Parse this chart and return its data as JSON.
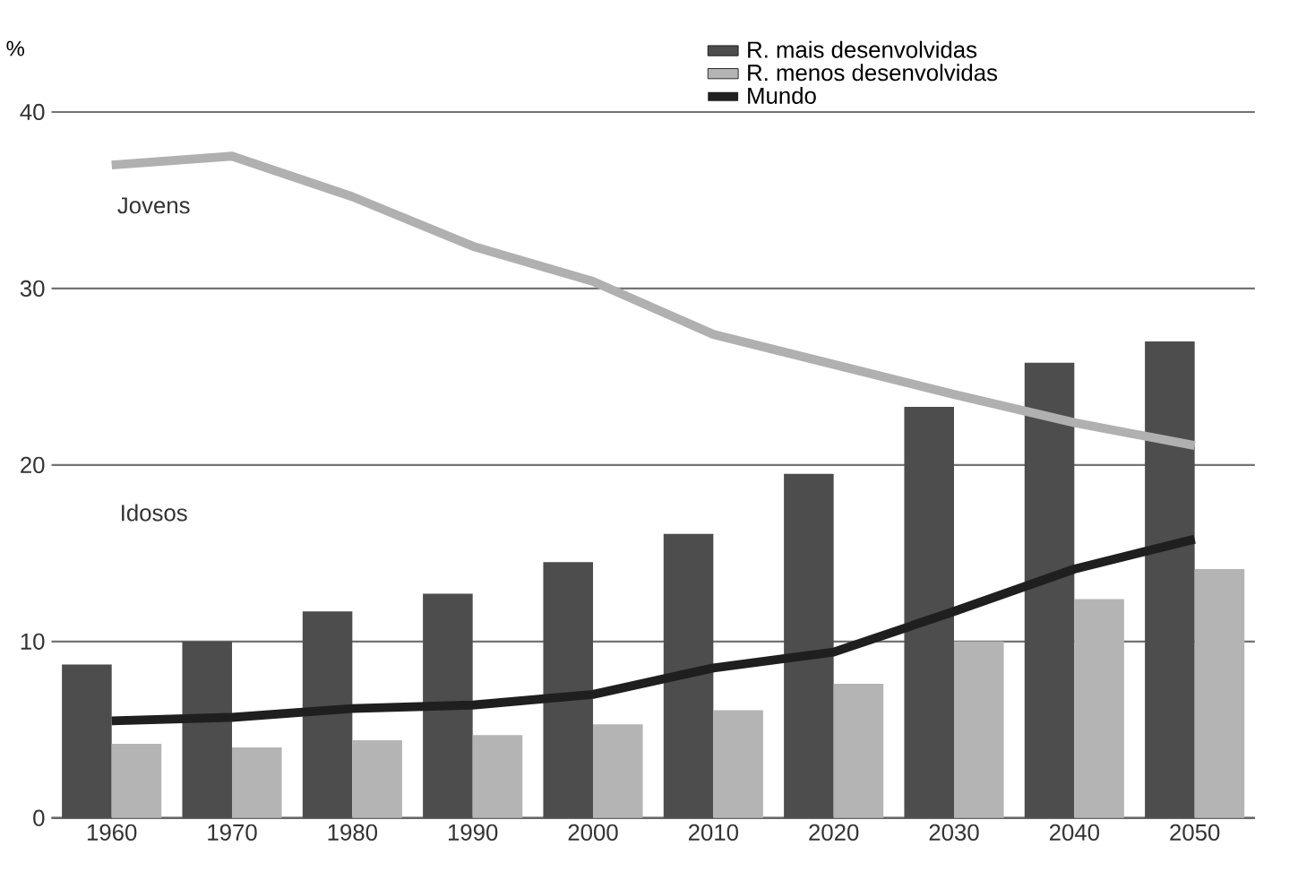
{
  "chart_data": {
    "type": "bar",
    "ylabel": "%",
    "categories": [
      "1960",
      "1970",
      "1980",
      "1990",
      "2000",
      "2010",
      "2020",
      "2030",
      "2040",
      "2050"
    ],
    "series": [
      {
        "name": "R. mais desenvolvidas",
        "color": "#4d4d4d",
        "values": [
          8.7,
          10.0,
          11.7,
          12.7,
          14.5,
          16.1,
          19.5,
          23.3,
          25.8,
          27.0
        ]
      },
      {
        "name": "R. menos desenvolvidas",
        "color": "#b4b4b4",
        "values": [
          4.2,
          4.0,
          4.4,
          4.7,
          5.3,
          6.1,
          7.6,
          10.0,
          12.4,
          14.1
        ]
      },
      {
        "name": "Mundo",
        "type": "line",
        "color": "#1f1f1f",
        "values": [
          5.5,
          5.7,
          6.2,
          6.4,
          7.0,
          8.5,
          9.4,
          11.7,
          14.1,
          15.8
        ]
      },
      {
        "type": "line",
        "color": "#b0b0b0",
        "values": [
          37.0,
          37.5,
          35.2,
          32.4,
          30.4,
          27.4,
          25.7,
          24.0,
          22.4,
          21.1
        ]
      }
    ],
    "ylim": [
      0,
      40
    ],
    "yticks": [
      0,
      10,
      20,
      30,
      40
    ],
    "grid": "y",
    "legend": "top right",
    "marker": "none",
    "line_style": "solid",
    "annotations": [
      "Jovens",
      "Idosos"
    ]
  }
}
